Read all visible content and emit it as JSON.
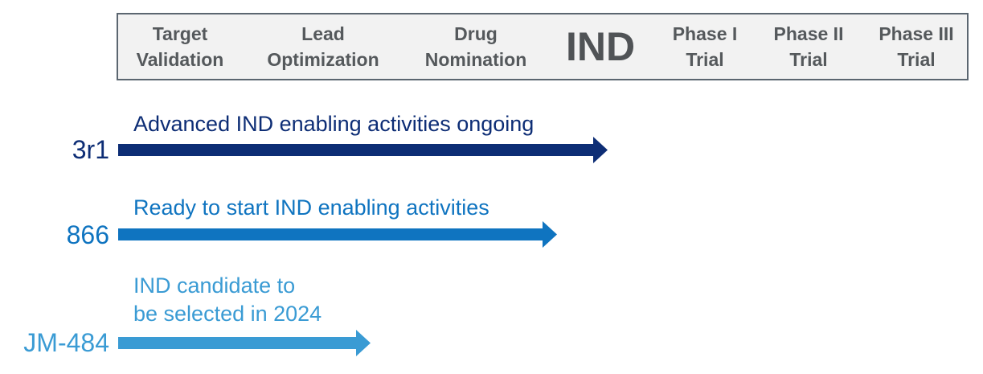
{
  "stages": [
    {
      "label": "Target\nValidation"
    },
    {
      "label": "Lead\nOptimization"
    },
    {
      "label": "Drug\nNomination"
    },
    {
      "label": "IND"
    },
    {
      "label": "Phase I\nTrial"
    },
    {
      "label": "Phase II\nTrial"
    },
    {
      "label": "Phase III\nTrial"
    }
  ],
  "programs": [
    {
      "name": "3r1",
      "status": "Advanced IND enabling activities ongoing",
      "color": "#0d2d75"
    },
    {
      "name": "866",
      "status": "Ready to start IND enabling activities",
      "color": "#0f74c0"
    },
    {
      "name": "JM-484",
      "status": "IND candidate to\nbe selected in 2024",
      "color": "#3a9bd4"
    }
  ],
  "colors": {
    "stage_bar_bg": "#f2f2f2",
    "stage_bar_border": "#5b6670",
    "stage_text": "#55595c"
  }
}
